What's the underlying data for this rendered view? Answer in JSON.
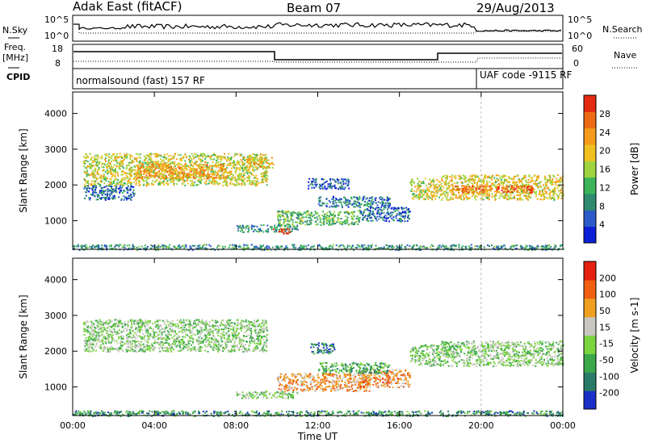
{
  "header": {
    "station": "Adak East (fitACF)",
    "beam": "Beam 07",
    "date": "29/Aug/2013"
  },
  "panels": {
    "noise": {
      "left_label": "N.Sky",
      "left_ticks": [
        "10^5",
        "10^0"
      ],
      "right_label": "N.Search",
      "right_ticks": [
        "10^5",
        "10^0"
      ]
    },
    "freq": {
      "left_label_1": "Freq.",
      "left_label_2": "[MHz]",
      "left_ticks": [
        "18",
        "8"
      ],
      "right_label": "Nave",
      "right_ticks": [
        "60",
        "0"
      ]
    },
    "cpid": {
      "label": "CPID",
      "segment_1": "normalsound (fast) 157 RF",
      "segment_2": "UAF code -9115 RF"
    }
  },
  "chart_data": [
    {
      "type": "heatmap",
      "name": "power",
      "ylabel": "Slant Range [km]",
      "ylim": [
        200,
        4600
      ],
      "yticks": [
        1000,
        2000,
        3000,
        4000
      ],
      "xlim": [
        0,
        24
      ],
      "colorbar_label": "Power [dB]",
      "colorbar_ticks": [
        "28",
        "24",
        "20",
        "16",
        "12",
        "8",
        "4"
      ],
      "colorbar_colors": [
        "#0b1fd6",
        "#2b5bc8",
        "#2f8b6e",
        "#3bb45a",
        "#9fd43e",
        "#f0c020",
        "#f59a1a",
        "#ee6a12",
        "#e42a10"
      ],
      "regions": [
        {
          "x0": 0.5,
          "x1": 9.5,
          "y0": 2000,
          "y1": 2900,
          "level": 0.55
        },
        {
          "x0": 3.0,
          "x1": 7.5,
          "y0": 2200,
          "y1": 2600,
          "level": 0.7
        },
        {
          "x0": 0.5,
          "x1": 3.0,
          "y0": 1600,
          "y1": 2000,
          "level": 0.2
        },
        {
          "x0": 10.0,
          "x1": 14.0,
          "y0": 900,
          "y1": 1300,
          "level": 0.4
        },
        {
          "x0": 8.0,
          "x1": 11.0,
          "y0": 700,
          "y1": 900,
          "level": 0.3
        },
        {
          "x0": 9.8,
          "x1": 10.6,
          "y0": 650,
          "y1": 800,
          "level": 0.95
        },
        {
          "x0": 12.0,
          "x1": 15.5,
          "y0": 1400,
          "y1": 1700,
          "level": 0.25
        },
        {
          "x0": 14.0,
          "x1": 16.5,
          "y0": 1000,
          "y1": 1400,
          "level": 0.2
        },
        {
          "x0": 16.5,
          "x1": 18.0,
          "y0": 1600,
          "y1": 2200,
          "level": 0.55
        },
        {
          "x0": 18.0,
          "x1": 24.0,
          "y0": 1600,
          "y1": 2300,
          "level": 0.6
        },
        {
          "x0": 18.5,
          "x1": 22.5,
          "y0": 1800,
          "y1": 2000,
          "level": 0.85
        },
        {
          "x0": 11.5,
          "x1": 13.5,
          "y0": 1900,
          "y1": 2200,
          "level": 0.15
        },
        {
          "x0": 8.5,
          "x1": 9.8,
          "y0": 2500,
          "y1": 2800,
          "level": 0.65
        },
        {
          "x0": 0.0,
          "x1": 24.0,
          "y0": 200,
          "y1": 350,
          "level": 0.3
        }
      ]
    },
    {
      "type": "heatmap",
      "name": "velocity",
      "ylabel": "Slant Range [km]",
      "xlabel": "Time UT",
      "ylim": [
        200,
        4600
      ],
      "yticks": [
        1000,
        2000,
        3000,
        4000
      ],
      "xlim": [
        0,
        24
      ],
      "xticks": [
        "00:00",
        "04:00",
        "08:00",
        "12:00",
        "16:00",
        "20:00",
        "00:00"
      ],
      "colorbar_label": "Velocity [m s-1]",
      "colorbar_ticks": [
        "200",
        "100",
        "50",
        "15",
        "-15",
        "-50",
        "-100",
        "-200"
      ],
      "colorbar_colors": [
        "#1a2fc8",
        "#2a7a6a",
        "#3aa84a",
        "#7ad43e",
        "#c8c8c0",
        "#f0a020",
        "#f06010",
        "#e42010"
      ],
      "regions": [
        {
          "x0": 0.5,
          "x1": 9.5,
          "y0": 2000,
          "y1": 2900,
          "level": 0.45
        },
        {
          "x0": 10.0,
          "x1": 14.5,
          "y0": 900,
          "y1": 1400,
          "level": 0.7
        },
        {
          "x0": 14.0,
          "x1": 16.5,
          "y0": 1000,
          "y1": 1500,
          "level": 0.72
        },
        {
          "x0": 11.6,
          "x1": 12.8,
          "y0": 1950,
          "y1": 2250,
          "level": 0.2
        },
        {
          "x0": 18.0,
          "x1": 24.0,
          "y0": 1600,
          "y1": 2300,
          "level": 0.45
        },
        {
          "x0": 16.5,
          "x1": 18.0,
          "y0": 1600,
          "y1": 2200,
          "level": 0.45
        },
        {
          "x0": 8.0,
          "x1": 11.0,
          "y0": 700,
          "y1": 900,
          "level": 0.45
        },
        {
          "x0": 12.0,
          "x1": 15.5,
          "y0": 1400,
          "y1": 1700,
          "level": 0.3
        },
        {
          "x0": 0.0,
          "x1": 24.0,
          "y0": 200,
          "y1": 350,
          "level": 0.25
        }
      ]
    }
  ]
}
